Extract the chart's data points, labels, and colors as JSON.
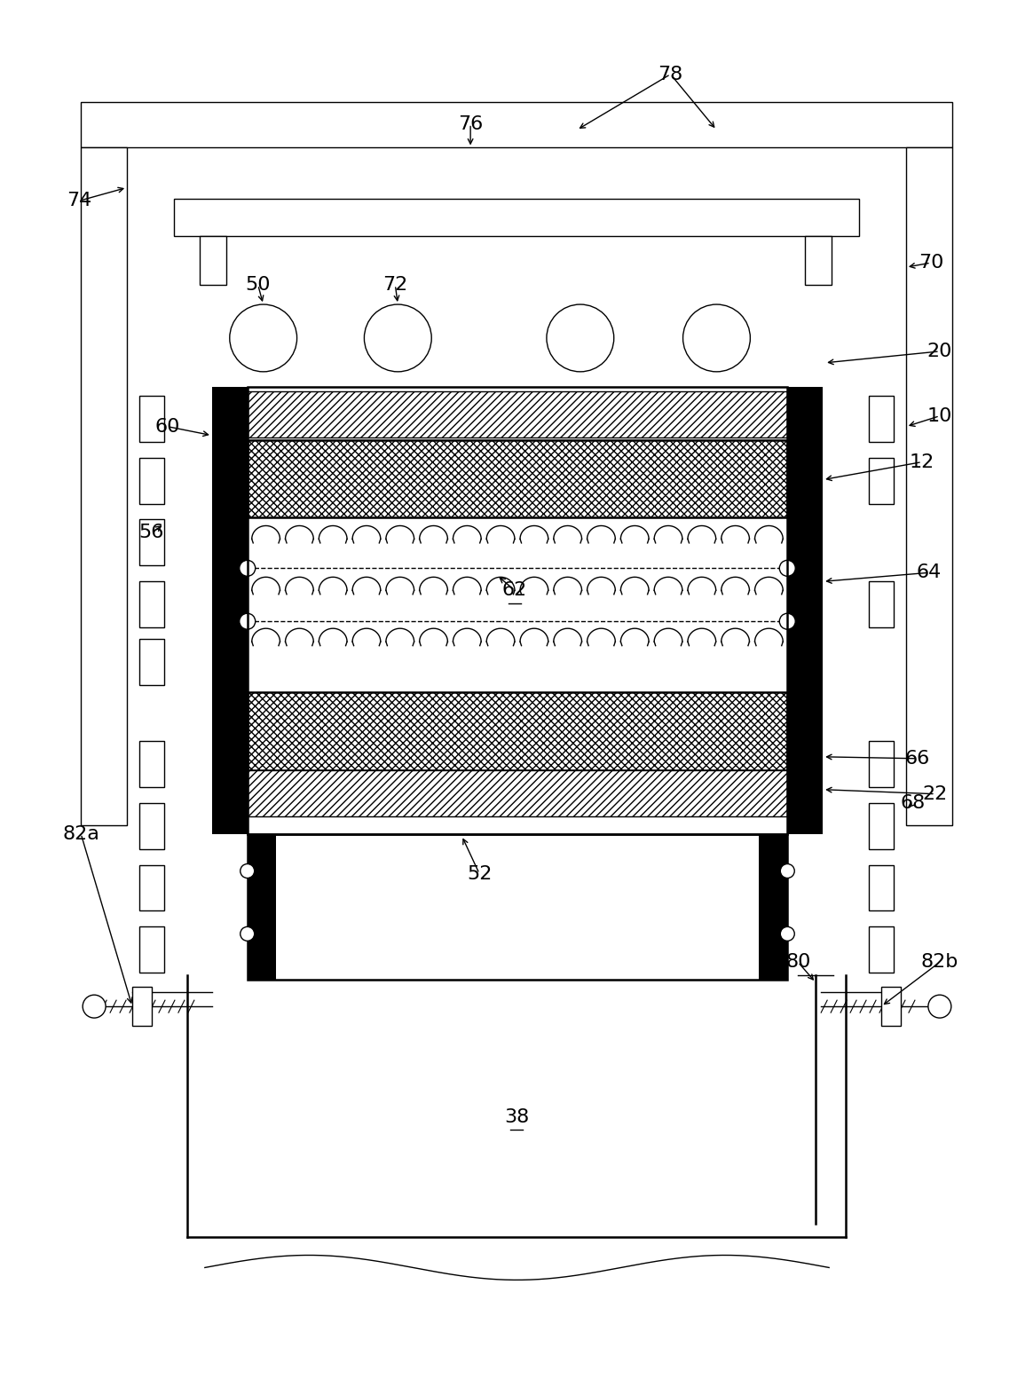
{
  "bg_color": "#ffffff",
  "line_color": "#000000",
  "figsize": [
    11.64,
    15.54
  ],
  "dpi": 100,
  "lw_thin": 1.0,
  "lw_med": 1.8,
  "lw_thick": 4.0
}
